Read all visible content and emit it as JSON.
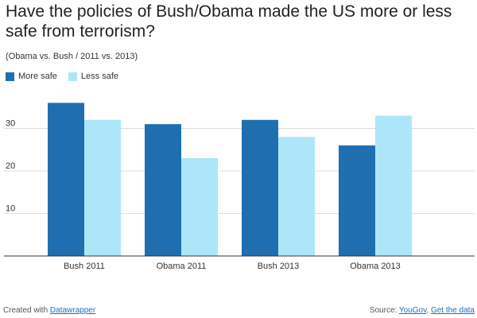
{
  "title": "Have the policies of Bush/Obama made the US more or less safe from terrorism?",
  "subtitle": "(Obama vs. Bush / 2011 vs. 2013)",
  "colors": {
    "more_safe": "#1f6eb0",
    "less_safe": "#ade6f8",
    "grid": "#dddddd",
    "axis": "#333333",
    "link": "#1d6fb4"
  },
  "chart_data": {
    "type": "bar",
    "categories": [
      "Bush 2011",
      "Obama 2011",
      "Bush 2013",
      "Obama 2013"
    ],
    "series": [
      {
        "name": "More safe",
        "values": [
          36,
          31,
          32,
          26
        ]
      },
      {
        "name": "Less safe",
        "values": [
          32,
          23,
          28,
          33
        ]
      }
    ],
    "yticks": [
      10,
      20,
      30
    ],
    "ylim": [
      0,
      40
    ],
    "grid": true,
    "legend_position": "top-left"
  },
  "footer": {
    "created_prefix": "Created with",
    "created_link": "Datawrapper",
    "source_prefix": "Source:",
    "source_link": "YouGov",
    "separator": ",",
    "get_data_link": "Get the data"
  }
}
